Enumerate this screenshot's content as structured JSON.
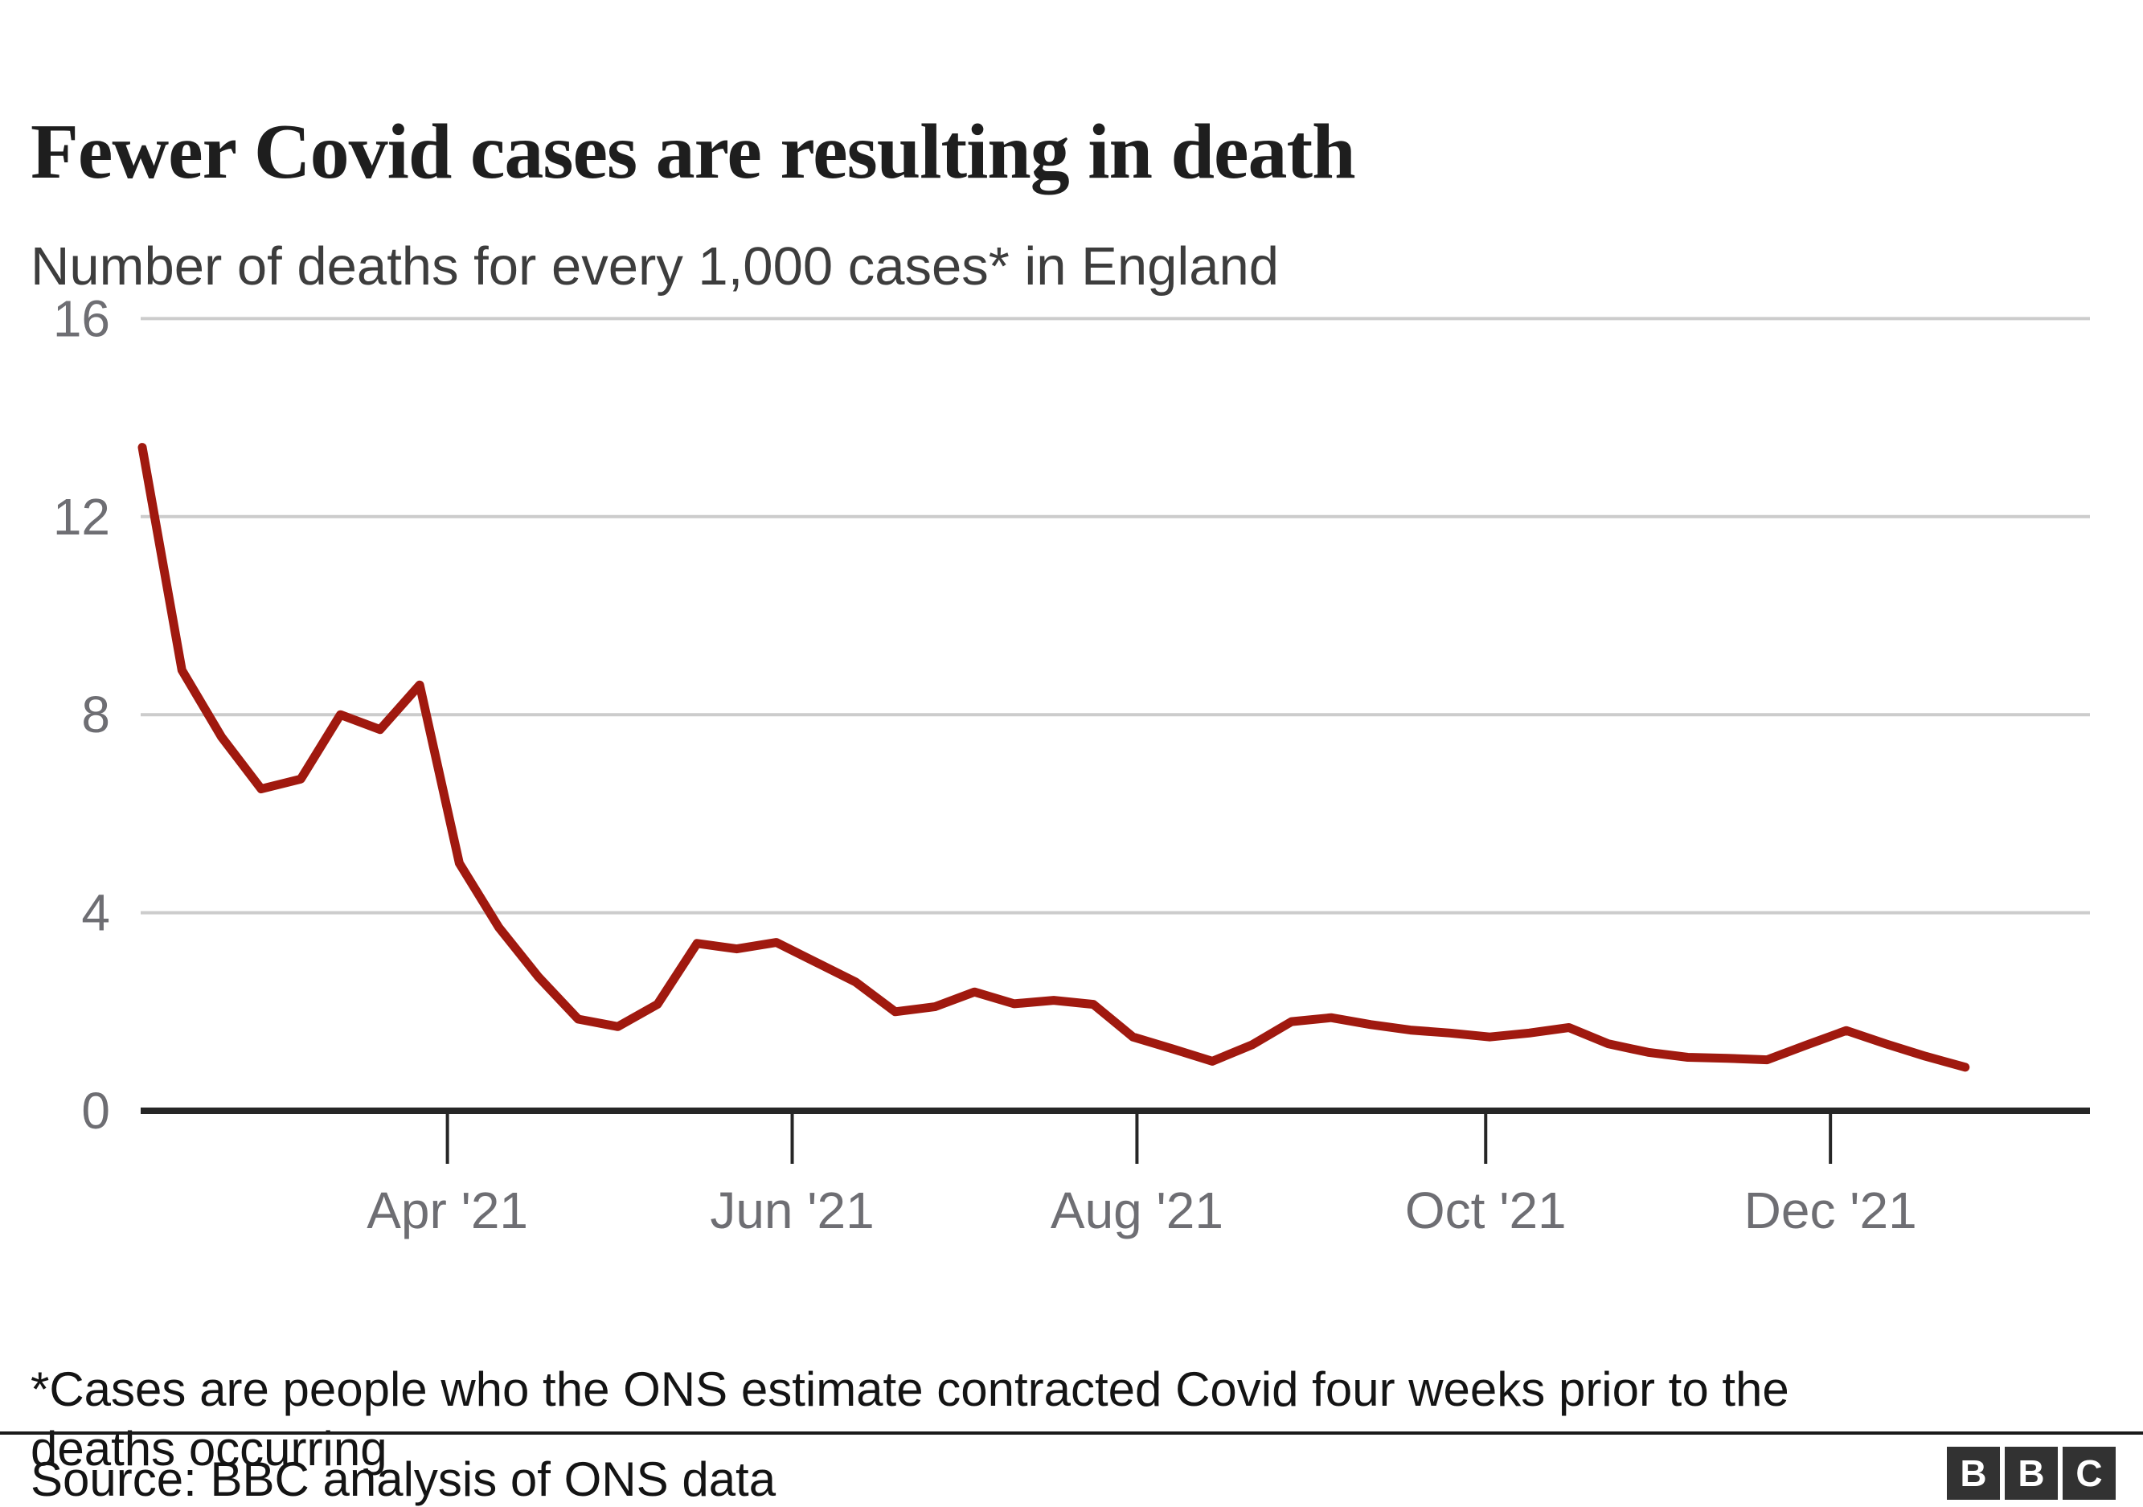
{
  "chart_data": {
    "type": "line",
    "title": "Fewer Covid cases are resulting in death",
    "subtitle": "Number of deaths for every 1,000 cases* in England",
    "x_axis": {
      "unit": "weekly data points, early Feb 2021 to early Jan 2022",
      "tick_labels": [
        "Apr '21",
        "Jun '21",
        "Aug '21",
        "Oct '21",
        "Dec '21"
      ],
      "tick_week_positions": [
        7.7,
        16.4,
        25.1,
        33.9,
        42.6
      ]
    },
    "y_axis": {
      "ticks": [
        0,
        4,
        8,
        12,
        16
      ],
      "range": [
        0,
        16
      ],
      "gridlines": true
    },
    "legend_position": "none",
    "series": [
      {
        "name": "Deaths per 1,000 cases (England)",
        "values": [
          13.4,
          8.9,
          7.55,
          6.5,
          6.7,
          8.0,
          7.7,
          8.6,
          5.0,
          3.7,
          2.7,
          1.85,
          1.7,
          2.15,
          3.38,
          3.27,
          3.4,
          3.0,
          2.6,
          2.0,
          2.1,
          2.4,
          2.16,
          2.23,
          2.15,
          1.49,
          1.25,
          1.0,
          1.33,
          1.8,
          1.88,
          1.74,
          1.63,
          1.57,
          1.49,
          1.57,
          1.68,
          1.35,
          1.18,
          1.08,
          1.06,
          1.03,
          1.33,
          1.62,
          1.35,
          1.1,
          0.88
        ]
      }
    ]
  },
  "footnote": {
    "line1": "*Cases are people who the ONS estimate contracted Covid four weeks prior to the",
    "line2": "deaths occurring"
  },
  "source": {
    "label": "Source: BBC analysis of ONS data"
  },
  "logo": {
    "letters": [
      "B",
      "B",
      "C"
    ]
  },
  "colors": {
    "line": "#a0190f",
    "grid": "#cccccc",
    "axis": "#262626",
    "tick_label": "#6e6e73",
    "title_text": "#1e1e1e",
    "subtitle_text": "#3d3d3d",
    "body_text": "#141414",
    "logo_bg": "#323232"
  }
}
